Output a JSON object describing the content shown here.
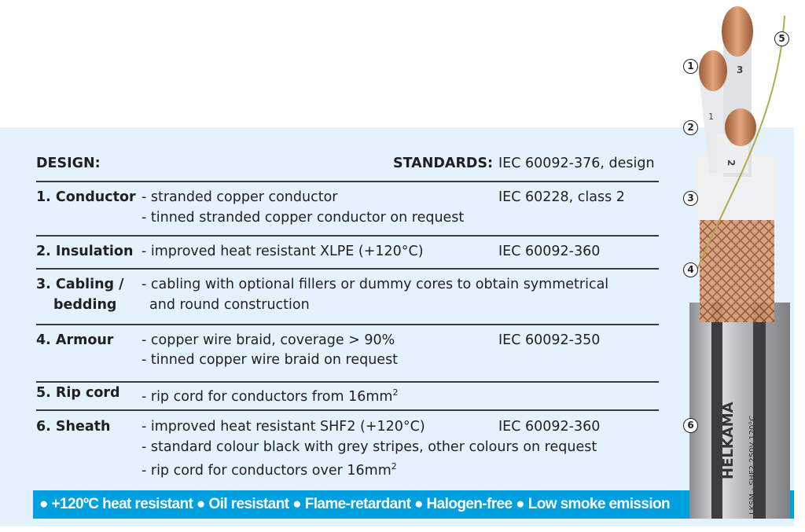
{
  "header": {
    "design_label": "DESIGN:",
    "standards_label": "STANDARDS:",
    "standards_value": "IEC 60092-376, design"
  },
  "rows": [
    {
      "label": "1. Conductor",
      "lines": [
        "- stranded copper conductor",
        "- tinned stranded copper conductor on request"
      ],
      "standard": "IEC 60228, class 2"
    },
    {
      "label": "2. Insulation",
      "lines": [
        "- improved heat resistant XLPE (+120°C)"
      ],
      "standard": "IEC 60092-360"
    },
    {
      "label": "3. Cabling /",
      "label2": "bedding",
      "lines": [
        "- cabling with optional fillers or dummy cores to obtain symmetrical",
        "and round construction"
      ],
      "standard": ""
    },
    {
      "label": "4. Armour",
      "lines": [
        "- copper wire braid, coverage > 90%",
        "- tinned copper wire braid on request"
      ],
      "standard": "IEC 60092-350"
    },
    {
      "label": "5. Rip cord",
      "lines": [
        "- rip cord for conductors from 16mm",
        "2"
      ],
      "standard": ""
    },
    {
      "label": "6. Sheath",
      "lines": [
        "- improved heat resistant SHF2 (+120°C)",
        "- standard colour black with grey stripes, other colours on request",
        "- rip cord for conductors over 16mm",
        "2"
      ],
      "standard": "IEC 60092-360"
    }
  ],
  "banner": "● +120ºC heat resistant ● Oil resistant ● Flame-retardant ● Halogen-free ● Low smoke emission",
  "cable": {
    "brand": "HELKAMA",
    "marking": "LKSM - SHF2 250V 120°C",
    "core_labels": [
      "1",
      "2",
      "3"
    ],
    "callouts": [
      "1",
      "2",
      "3",
      "4",
      "5",
      "6"
    ]
  },
  "colors": {
    "panel": "#e3f2fc",
    "banner": "#009fe0",
    "copper": "#c9855a"
  }
}
